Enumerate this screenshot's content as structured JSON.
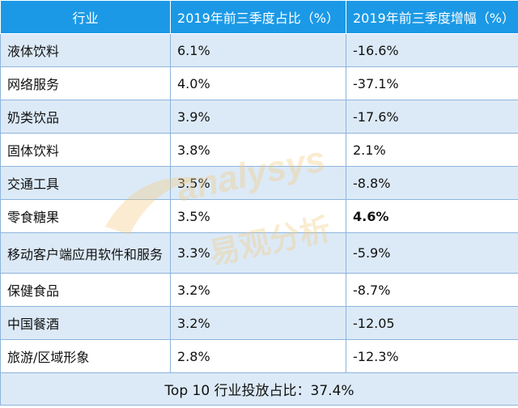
{
  "header": {
    "col1": "行业",
    "col2": "2019年前三季度占比（%）",
    "col3": "2019年前三季度增幅（%）"
  },
  "rows": [
    {
      "industry": "液体饮料",
      "share": "6.1%",
      "growth": "-16.6%"
    },
    {
      "industry": "网络服务",
      "share": "4.0%",
      "growth": "-37.1%"
    },
    {
      "industry": "奶类饮品",
      "share": "3.9%",
      "growth": "-17.6%"
    },
    {
      "industry": "固体饮料",
      "share": "3.8%",
      "growth": "2.1%"
    },
    {
      "industry": "交通工具",
      "share": "3.5%",
      "growth": "-8.8%"
    },
    {
      "industry": "零食糖果",
      "share": "3.5%",
      "growth": "4.6%"
    },
    {
      "industry": "移动客户端应用软件和服务",
      "share": "3.3%",
      "growth": "-5.9%"
    },
    {
      "industry": "保健食品",
      "share": "3.2%",
      "growth": "-8.7%"
    },
    {
      "industry": "中国餐酒",
      "share": "3.2%",
      "growth": "-12.05"
    },
    {
      "industry": "旅游/区域形象",
      "share": "2.8%",
      "growth": "-12.3%"
    }
  ],
  "footer": {
    "summary": "Top 10 行业投放占比：37.4%"
  },
  "watermark": {
    "text_en": "analysys",
    "text_cn": "易观分析",
    "color": "#f3c97a"
  },
  "colors": {
    "header_bg": "#1b99e6",
    "stripe": "#dceaf7",
    "border": "#8db4dc"
  }
}
